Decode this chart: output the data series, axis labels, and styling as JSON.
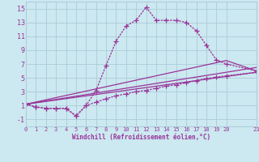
{
  "line1_x": [
    0,
    1,
    2,
    3,
    4,
    5,
    6,
    7,
    8,
    9,
    10,
    11,
    12,
    13,
    14,
    15,
    16,
    17,
    18,
    19,
    20,
    23
  ],
  "line1_y": [
    1.2,
    0.8,
    0.6,
    0.6,
    0.6,
    -0.5,
    1.0,
    3.2,
    6.8,
    10.3,
    12.5,
    13.3,
    15.2,
    13.3,
    13.3,
    13.3,
    13.0,
    11.8,
    9.7,
    7.6,
    7.0,
    6.0
  ],
  "line2_x": [
    0,
    1,
    2,
    3,
    4,
    5,
    6,
    7,
    8,
    9,
    10,
    11,
    12,
    13,
    14,
    15,
    16,
    17,
    18,
    19,
    20,
    23
  ],
  "line2_y": [
    1.2,
    0.8,
    0.6,
    0.6,
    0.6,
    -0.5,
    1.0,
    1.5,
    2.0,
    2.4,
    2.7,
    3.0,
    3.2,
    3.5,
    3.8,
    4.0,
    4.3,
    4.6,
    4.9,
    5.1,
    5.3,
    5.8
  ],
  "line3_x": [
    0,
    20,
    23
  ],
  "line3_y": [
    1.2,
    7.5,
    6.0
  ],
  "line4_x": [
    0,
    23
  ],
  "line4_y": [
    1.2,
    6.5
  ],
  "line5_x": [
    0,
    23
  ],
  "line5_y": [
    1.2,
    5.8
  ],
  "color": "#993399",
  "bg_color": "#cce8f0",
  "grid_color": "#aaccd8",
  "xlabel": "Windchill (Refroidissement éolien,°C)",
  "xlim": [
    0,
    23
  ],
  "ylim": [
    -2,
    16
  ],
  "xticks": [
    0,
    1,
    2,
    3,
    4,
    5,
    6,
    7,
    8,
    9,
    10,
    11,
    12,
    13,
    14,
    15,
    16,
    17,
    18,
    19,
    20,
    23
  ],
  "xtick_labels": [
    "0",
    "1",
    "2",
    "3",
    "4",
    "5",
    "6",
    "7",
    "8",
    "9",
    "10",
    "11",
    "12",
    "13",
    "14",
    "15",
    "16",
    "17",
    "18",
    "19",
    "20",
    "23"
  ],
  "yticks": [
    -1,
    1,
    3,
    5,
    7,
    9,
    11,
    13,
    15
  ],
  "marker": "+"
}
